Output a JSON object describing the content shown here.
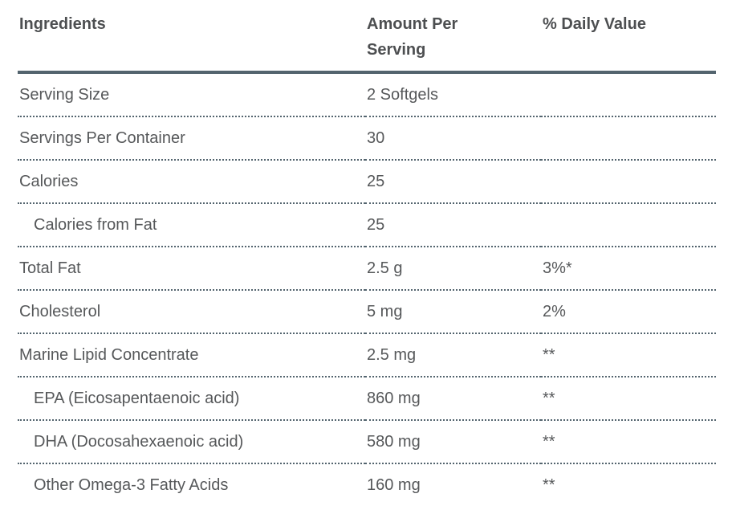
{
  "table": {
    "columns": [
      "Ingredients",
      "Amount Per Serving",
      "% Daily Value"
    ],
    "rows": [
      {
        "ingredient": "Serving Size",
        "amount": "2 Softgels",
        "daily_value": "",
        "indent": false
      },
      {
        "ingredient": "Servings Per Container",
        "amount": "30",
        "daily_value": "",
        "indent": false
      },
      {
        "ingredient": "Calories",
        "amount": "25",
        "daily_value": "",
        "indent": false
      },
      {
        "ingredient": "Calories from Fat",
        "amount": "25",
        "daily_value": "",
        "indent": true
      },
      {
        "ingredient": "Total Fat",
        "amount": "2.5 g",
        "daily_value": "3%*",
        "indent": false
      },
      {
        "ingredient": "Cholesterol",
        "amount": "5 mg",
        "daily_value": "2%",
        "indent": false
      },
      {
        "ingredient": "Marine Lipid Concentrate",
        "amount": "2.5 mg",
        "daily_value": "**",
        "indent": false
      },
      {
        "ingredient": "EPA (Eicosapentaenoic acid)",
        "amount": "860 mg",
        "daily_value": "**",
        "indent": true
      },
      {
        "ingredient": "DHA (Docosahexaenoic acid)",
        "amount": "580 mg",
        "daily_value": "**",
        "indent": true
      },
      {
        "ingredient": "Other Omega-3 Fatty Acids",
        "amount": "160 mg",
        "daily_value": "**",
        "indent": true
      }
    ],
    "colors": {
      "border": "#53646e",
      "text": "#56585a",
      "header_text": "#4d4f51"
    }
  }
}
